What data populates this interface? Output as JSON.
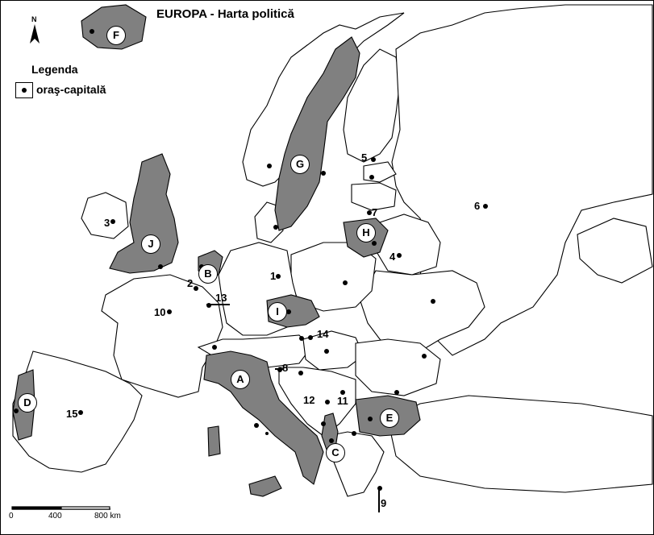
{
  "title": "EUROPA - Harta politică",
  "north_label": "N",
  "legend": {
    "title": "Legenda",
    "capital_label": "oraş-capitală"
  },
  "scale": {
    "zero": "0",
    "mid": "400",
    "end": "800 km"
  },
  "colors": {
    "highlight": "#808080",
    "land": "#ffffff",
    "outline": "#000000",
    "sea": "#ffffff"
  },
  "numbers": [
    "1",
    "2",
    "3",
    "4",
    "5",
    "6",
    "7",
    "8",
    "9",
    "10",
    "11",
    "12",
    "13",
    "14",
    "15"
  ],
  "letters": [
    "A",
    "B",
    "C",
    "D",
    "E",
    "F",
    "G",
    "H",
    "I",
    "J"
  ]
}
